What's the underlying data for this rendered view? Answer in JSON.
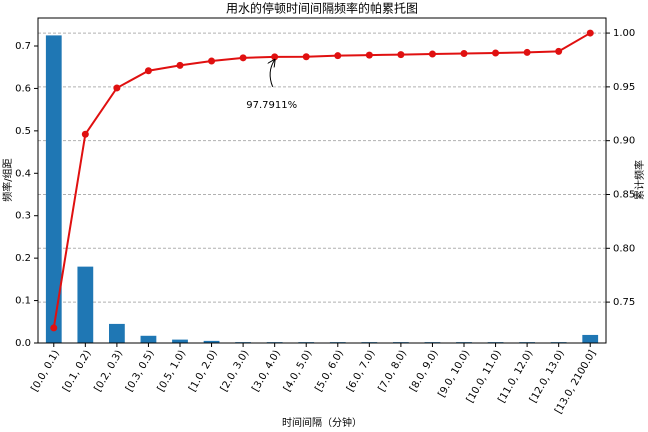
{
  "chart_data": {
    "type": "pareto",
    "title": "用水的停顿时间间隔频率的帕累托图",
    "xlabel": "时间间隔（分钟）",
    "ylabel": "频率/组距",
    "y2label": "累计频率",
    "annotation": "97.7911%",
    "categories": [
      "[0.0, 0.1)",
      "[0.1, 0.2)",
      "[0.2, 0.3)",
      "[0.3, 0.5)",
      "[0.5, 1.0)",
      "[1.0, 2.0)",
      "[2.0, 3.0)",
      "[3.0, 4.0)",
      "[4.0, 5.0)",
      "[5.0, 6.0)",
      "[6.0, 7.0)",
      "[7.0, 8.0)",
      "[8.0, 9.0)",
      "[9.0, 10.0)",
      "[10.0, 11.0)",
      "[11.0, 12.0)",
      "[12.0, 13.0)",
      "[13.0, 2100.0]"
    ],
    "series": [
      {
        "name": "频率/组距",
        "color": "#1f77b4",
        "values": [
          0.725,
          0.18,
          0.045,
          0.017,
          0.008,
          0.005,
          0.002,
          0.002,
          0.002,
          0.002,
          0.002,
          0.002,
          0.002,
          0.002,
          0.002,
          0.002,
          0.002,
          0.019
        ]
      },
      {
        "name": "累计频率",
        "color": "#e01010",
        "axis": "y2",
        "values": [
          0.726,
          0.906,
          0.949,
          0.965,
          0.97,
          0.974,
          0.977,
          0.9779,
          0.978,
          0.979,
          0.9795,
          0.98,
          0.9805,
          0.981,
          0.9815,
          0.982,
          0.983,
          1.0
        ]
      }
    ],
    "ylim": [
      0,
      0.766
    ],
    "yticks": [
      {
        "value": 0,
        "label": "0.0"
      },
      0.1,
      0.2,
      0.3,
      0.4,
      0.5,
      0.6,
      0.7
    ],
    "y2lim": [
      0.712,
      1.014
    ],
    "y2ticks": [
      0.75,
      {
        "value": 0.8,
        "label": "0.80"
      },
      0.85,
      {
        "value": 0.9,
        "label": "0.90"
      },
      0.95,
      {
        "value": 1.0,
        "label": "1.00"
      }
    ],
    "grid": "y2"
  }
}
